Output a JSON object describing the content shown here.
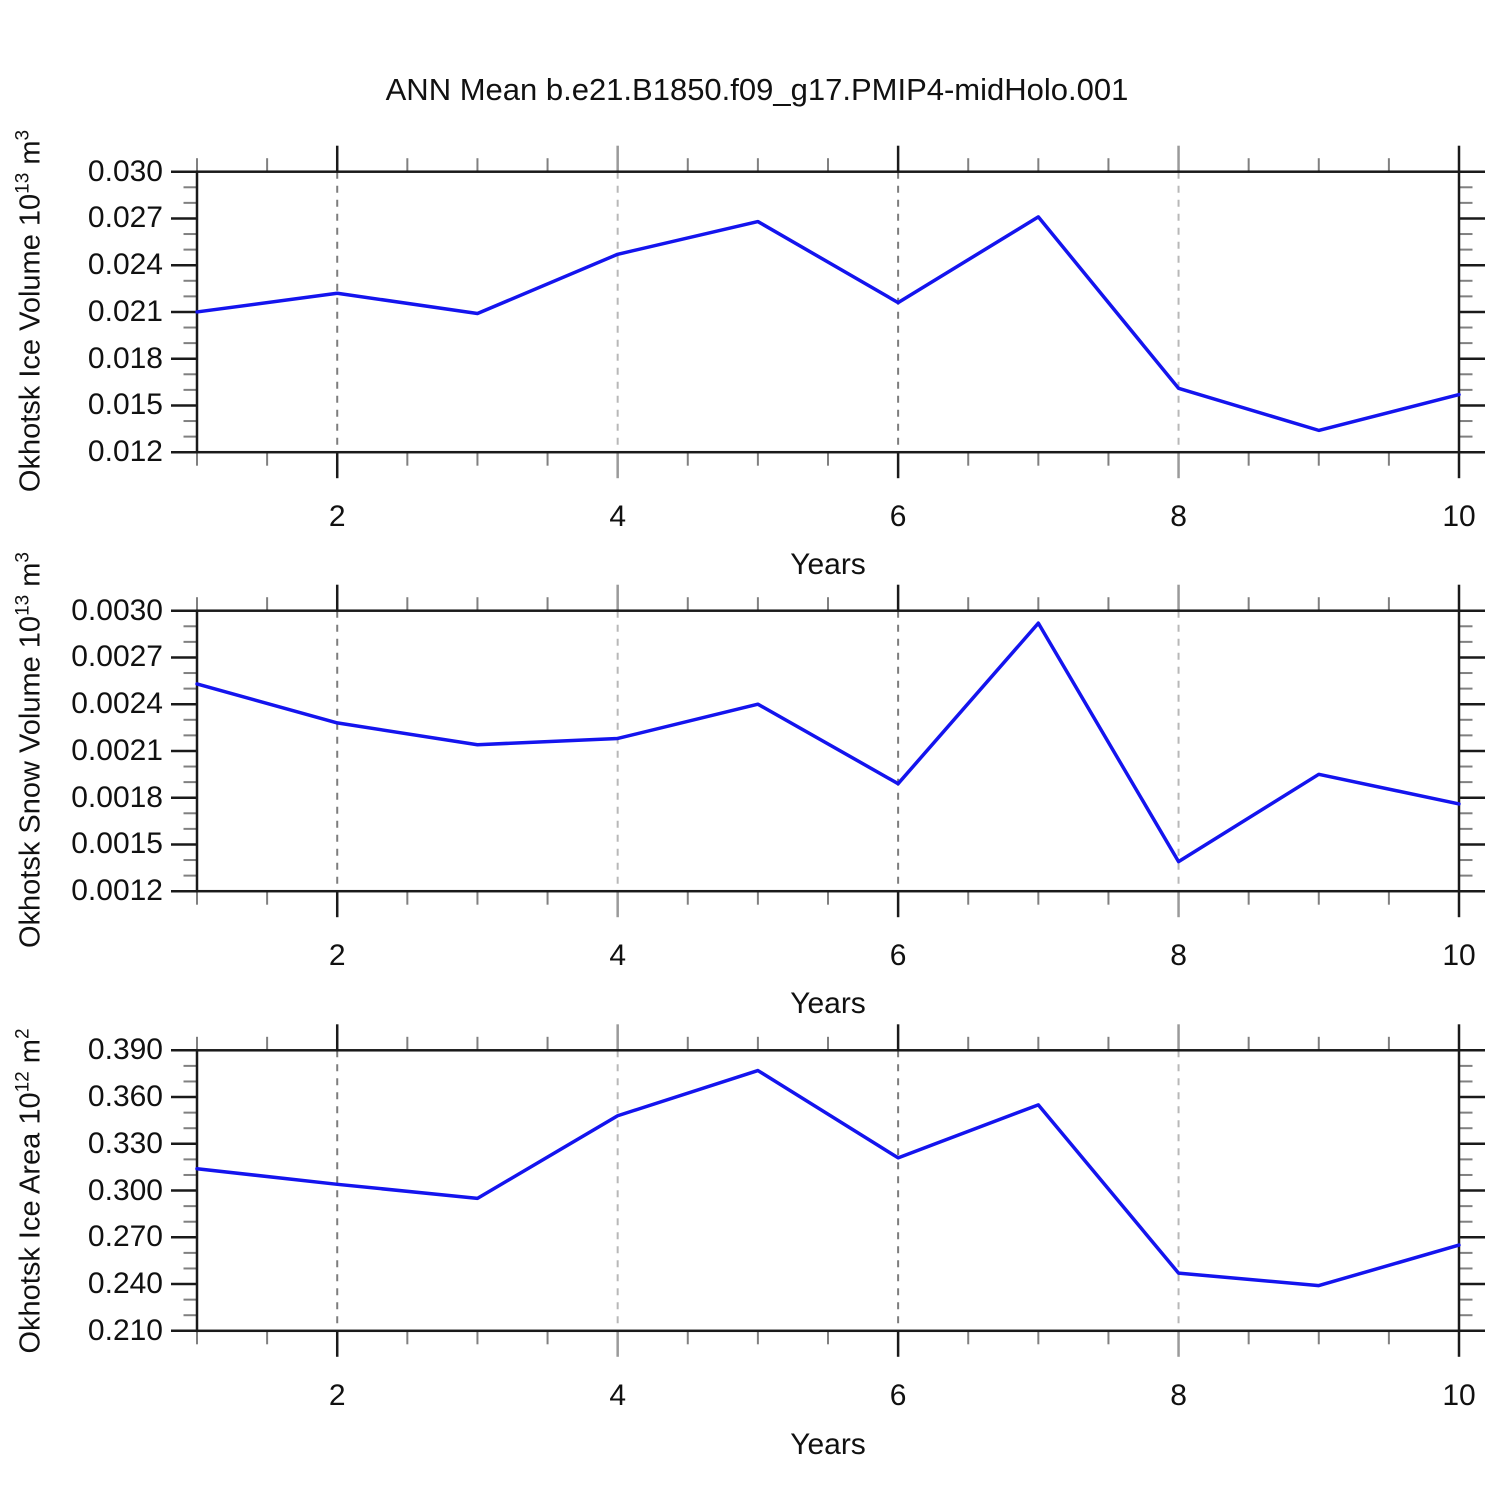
{
  "page": {
    "title": "ANN Mean b.e21.B1850.f09_g17.PMIP4-midHolo.001",
    "background": "#ffffff"
  },
  "style": {
    "line_color": "#1414ee",
    "axis_color": "#1a1a1a",
    "major_tick_color": "#1a1a1a",
    "alt_major_tick_color": "#9a9a9a",
    "minor_tick_color": "#808080",
    "grid_dark": "#7d7d7d",
    "grid_light": "#b8b8b8"
  },
  "chart_data": [
    {
      "type": "line",
      "name": "okhotsk-ice-volume",
      "ylabel": {
        "t1": "Okhotsk Ice Volume 10",
        "sup1": "13",
        "t2": " m",
        "sup2": "3"
      },
      "xlabel": "Years",
      "x": [
        1,
        2,
        3,
        4,
        5,
        6,
        7,
        8,
        9,
        10
      ],
      "values": [
        0.021,
        0.0222,
        0.0209,
        0.0247,
        0.0268,
        0.0216,
        0.0271,
        0.0161,
        0.0134,
        0.0157
      ],
      "xlim": [
        1,
        10
      ],
      "ylim": [
        0.012,
        0.03
      ],
      "yticks": {
        "values": [
          0.03,
          0.027,
          0.024,
          0.021,
          0.018,
          0.015,
          0.012
        ],
        "labels": [
          "0.030",
          "0.027",
          "0.024",
          "0.021",
          "0.018",
          "0.015",
          "0.012"
        ]
      },
      "ytick_minor_step": 0.001,
      "xticks": {
        "values": [
          2,
          4,
          6,
          8,
          10
        ],
        "labels": [
          "2",
          "4",
          "6",
          "8",
          "10"
        ]
      },
      "xtick_minor_step": 0.5,
      "grid_years": [
        2,
        4,
        6,
        8
      ],
      "grid_style": "dashed",
      "legend": "none"
    },
    {
      "type": "line",
      "name": "okhotsk-snow-volume",
      "ylabel": {
        "t1": "Okhotsk Snow Volume 10",
        "sup1": "13",
        "t2": " m",
        "sup2": "3"
      },
      "xlabel": "Years",
      "x": [
        1,
        2,
        3,
        4,
        5,
        6,
        7,
        8,
        9,
        10
      ],
      "values": [
        0.00253,
        0.00228,
        0.00214,
        0.00218,
        0.0024,
        0.00189,
        0.00292,
        0.00139,
        0.00195,
        0.00176
      ],
      "xlim": [
        1,
        10
      ],
      "ylim": [
        0.0012,
        0.003
      ],
      "yticks": {
        "values": [
          0.003,
          0.0027,
          0.0024,
          0.0021,
          0.0018,
          0.0015,
          0.0012
        ],
        "labels": [
          "0.0030",
          "0.0027",
          "0.0024",
          "0.0021",
          "0.0018",
          "0.0015",
          "0.0012"
        ]
      },
      "ytick_minor_step": 0.0001,
      "xticks": {
        "values": [
          2,
          4,
          6,
          8,
          10
        ],
        "labels": [
          "2",
          "4",
          "6",
          "8",
          "10"
        ]
      },
      "xtick_minor_step": 0.5,
      "grid_years": [
        2,
        4,
        6,
        8
      ],
      "grid_style": "dashed",
      "legend": "none"
    },
    {
      "type": "line",
      "name": "okhotsk-ice-area",
      "ylabel": {
        "t1": "Okhotsk Ice Area 10",
        "sup1": "12",
        "t2": " m",
        "sup2": "2"
      },
      "xlabel": "Years",
      "x": [
        1,
        2,
        3,
        4,
        5,
        6,
        7,
        8,
        9,
        10
      ],
      "values": [
        0.314,
        0.304,
        0.295,
        0.348,
        0.377,
        0.321,
        0.355,
        0.247,
        0.239,
        0.265
      ],
      "xlim": [
        1,
        10
      ],
      "ylim": [
        0.21,
        0.39
      ],
      "yticks": {
        "values": [
          0.39,
          0.36,
          0.33,
          0.3,
          0.27,
          0.24,
          0.21
        ],
        "labels": [
          "0.390",
          "0.360",
          "0.330",
          "0.300",
          "0.270",
          "0.240",
          "0.210"
        ]
      },
      "ytick_minor_step": 0.01,
      "xticks": {
        "values": [
          2,
          4,
          6,
          8,
          10
        ],
        "labels": [
          "2",
          "4",
          "6",
          "8",
          "10"
        ]
      },
      "xtick_minor_step": 0.5,
      "grid_years": [
        2,
        4,
        6,
        8
      ],
      "grid_style": "dashed",
      "legend": "none"
    }
  ]
}
